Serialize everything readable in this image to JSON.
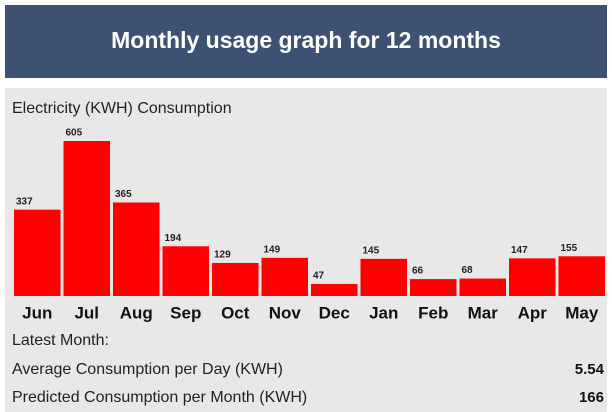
{
  "header": {
    "title": "Monthly usage graph for 12 months"
  },
  "chart_data": {
    "type": "bar",
    "title": "Electricity (KWH) Consumption",
    "categories": [
      "Jun",
      "Jul",
      "Aug",
      "Sep",
      "Oct",
      "Nov",
      "Dec",
      "Jan",
      "Feb",
      "Mar",
      "Apr",
      "May"
    ],
    "values": [
      337,
      605,
      365,
      194,
      129,
      149,
      47,
      145,
      66,
      68,
      147,
      155
    ],
    "color": "#ff0000"
  },
  "summary": {
    "heading": "Latest Month:",
    "rows": [
      {
        "label": "Average Consumption per Day (KWH)",
        "value": "5.54"
      },
      {
        "label": "Predicted Consumption per Month (KWH)",
        "value": "166"
      }
    ]
  }
}
